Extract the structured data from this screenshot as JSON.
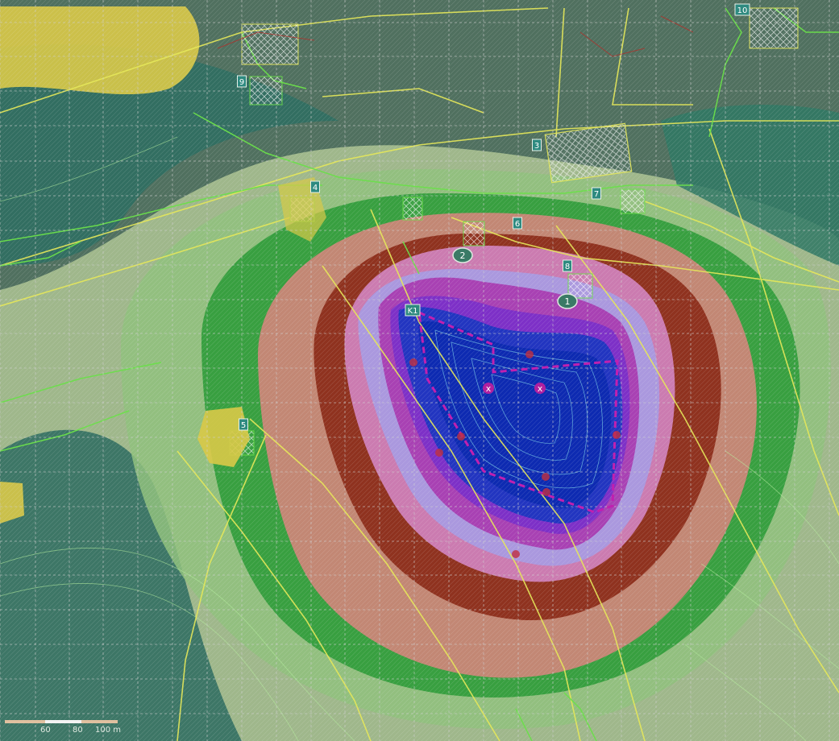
{
  "map": {
    "colors": {
      "base": "#50705f",
      "zone_outer_light": "#b9cf9a",
      "zone_teal": "#2c6b5f",
      "zone_green": "#2f9b3a",
      "zone_light_green": "#8fc17d",
      "zone_salmon": "#c98677",
      "zone_dark_red": "#8b2a18",
      "zone_pink": "#cf7fb8",
      "zone_magenta": "#a83cb0",
      "zone_lavender": "#a89ae0",
      "zone_purple": "#7a2fc8",
      "zone_blue": "#1f36c0",
      "zone_core": "#0d2ab0",
      "parcel_outline": "#e6e85a",
      "parcel_green": "#6be04a",
      "boundary_red": "#b0302a",
      "pit_outline": "#c020b0",
      "contour": "#7fd0e8",
      "grid": "#d0d0d0"
    },
    "source_points": [
      {
        "label": "1"
      },
      {
        "label": "2"
      }
    ],
    "x_markers": [
      {
        "label": "x"
      },
      {
        "label": "x"
      }
    ],
    "receptor_labels": [
      "K1",
      "3",
      "4",
      "5",
      "6",
      "7",
      "8",
      "9",
      "10"
    ],
    "scale": {
      "ticks": [
        "60",
        "80",
        "100 m"
      ]
    }
  }
}
